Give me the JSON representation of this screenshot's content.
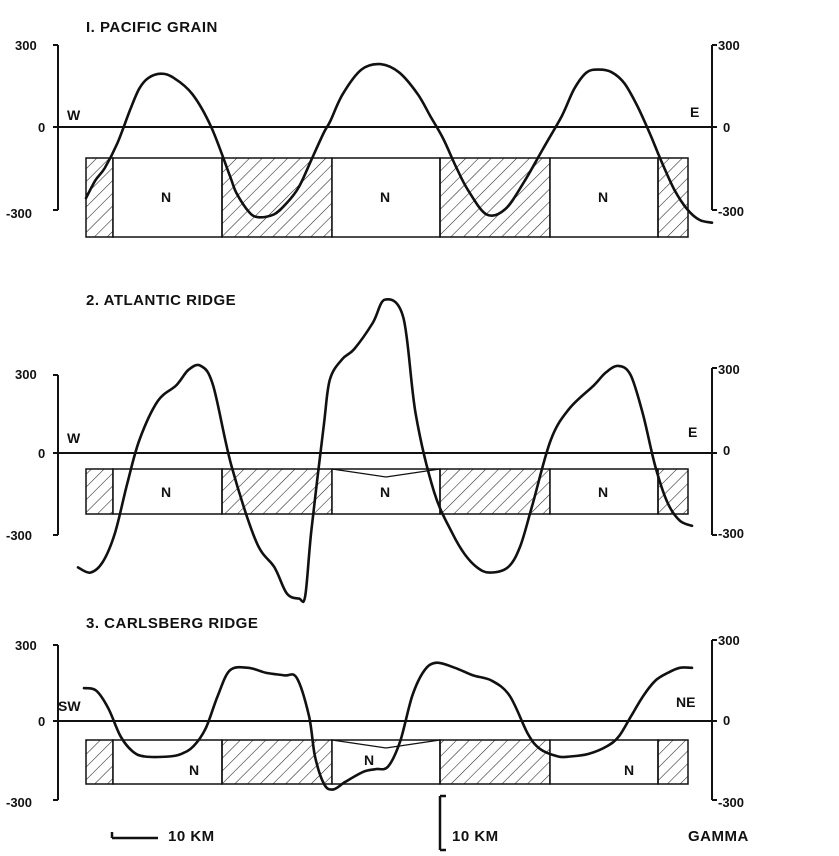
{
  "chart_data": [
    {
      "type": "line",
      "title": "I. PACIFIC  GRAIN",
      "direction_left": "W",
      "direction_right": "E",
      "y_ticks_left": [
        "300",
        "0",
        "-300"
      ],
      "y_ticks_right": [
        "300",
        "0",
        "-300"
      ],
      "ylim": [
        -420,
        450
      ],
      "block_label": "N",
      "normal_blocks": [
        1,
        3,
        5
      ],
      "series": [
        {
          "x": [
            0,
            1.5,
            3,
            5,
            7,
            8.5,
            10,
            12,
            14,
            17,
            20,
            23,
            24,
            26,
            27.5,
            30,
            32,
            34,
            36,
            38,
            39,
            41,
            44,
            47,
            50,
            53,
            55,
            57,
            59,
            61,
            64,
            67,
            70,
            73,
            76,
            78,
            80,
            82,
            84,
            86,
            88,
            90,
            92,
            94,
            96,
            98,
            100
          ],
          "y": [
            -260,
            -195,
            -150,
            -60,
            60,
            140,
            180,
            195,
            180,
            120,
            0,
            -180,
            -240,
            -310,
            -330,
            -320,
            -280,
            -220,
            -120,
            -20,
            20,
            120,
            210,
            230,
            200,
            120,
            40,
            -40,
            -140,
            -230,
            -320,
            -300,
            -200,
            -80,
            40,
            140,
            200,
            210,
            200,
            160,
            80,
            -20,
            -130,
            -230,
            -300,
            -340,
            -350
          ]
        }
      ]
    },
    {
      "type": "line",
      "title": "2. ATLANTIC   RIDGE",
      "direction_left": "W",
      "direction_right": "E",
      "y_ticks_left": [
        "300",
        "0",
        "-300"
      ],
      "y_ticks_right": [
        "300",
        "0",
        "-300"
      ],
      "ylim": [
        -580,
        620
      ],
      "block_label": "N",
      "normal_blocks": [
        1,
        3,
        5
      ],
      "series": [
        {
          "x": [
            0,
            2,
            4,
            6,
            8,
            10,
            13,
            16,
            18,
            20,
            22,
            25,
            29,
            32,
            34,
            36,
            37,
            38,
            40,
            41,
            43,
            45,
            48,
            50,
            53,
            55,
            58,
            61,
            63,
            65,
            67,
            70,
            72,
            74,
            77,
            80,
            84,
            86,
            88,
            90,
            92,
            94,
            96,
            98,
            100
          ],
          "y": [
            -440,
            -460,
            -420,
            -310,
            -120,
            50,
            200,
            260,
            320,
            335,
            260,
            -50,
            -340,
            -440,
            -540,
            -560,
            -550,
            -300,
            100,
            280,
            360,
            400,
            500,
            590,
            520,
            150,
            -150,
            -310,
            -390,
            -440,
            -460,
            -440,
            -360,
            -200,
            50,
            170,
            260,
            310,
            335,
            300,
            150,
            -50,
            -190,
            -260,
            -280
          ]
        }
      ]
    },
    {
      "type": "line",
      "title": "3. CARLSBERG   RIDGE",
      "direction_left": "SW",
      "direction_right": "NE",
      "y_ticks_left": [
        "300",
        "0",
        "-300"
      ],
      "y_ticks_right": [
        "300",
        "0",
        "-300"
      ],
      "ylim": [
        -340,
        350
      ],
      "block_label": "N",
      "normal_blocks": [
        1,
        3,
        5
      ],
      "series": [
        {
          "x": [
            0,
            2,
            4,
            6,
            8,
            10,
            14,
            16,
            18,
            20,
            22,
            24,
            27,
            30,
            33,
            35,
            37,
            38,
            39.5,
            41,
            43,
            46,
            48,
            50,
            52,
            54,
            56,
            58,
            61,
            64,
            67,
            70,
            73,
            75,
            78,
            80,
            83,
            86,
            88,
            90,
            92,
            94,
            96,
            98,
            100
          ],
          "y": [
            130,
            120,
            50,
            -60,
            -120,
            -140,
            -140,
            -130,
            -100,
            -30,
            100,
            200,
            210,
            190,
            180,
            170,
            20,
            -140,
            -250,
            -270,
            -240,
            -200,
            -190,
            -180,
            -80,
            100,
            200,
            230,
            210,
            180,
            160,
            100,
            -50,
            -110,
            -140,
            -140,
            -130,
            -100,
            -60,
            20,
            100,
            160,
            190,
            210,
            210
          ]
        }
      ]
    }
  ],
  "footer": {
    "scale_horizontal": "10 KM",
    "scale_vertical": "10 KM",
    "unit": "GAMMA"
  }
}
